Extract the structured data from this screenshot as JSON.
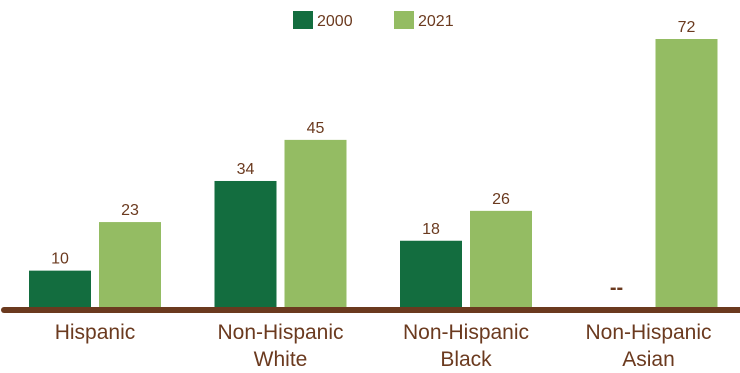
{
  "chart_data": {
    "type": "bar",
    "categories": [
      [
        "Hispanic"
      ],
      [
        "Non-Hispanic",
        "White"
      ],
      [
        "Non-Hispanic",
        "Black"
      ],
      [
        "Non-Hispanic",
        "Asian"
      ]
    ],
    "series": [
      {
        "name": "2000",
        "values": [
          10,
          34,
          18,
          null
        ],
        "labels": [
          "10",
          "34",
          "18",
          "--"
        ]
      },
      {
        "name": "2021",
        "values": [
          23,
          45,
          26,
          72
        ],
        "labels": [
          "23",
          "45",
          "26",
          "72"
        ]
      }
    ],
    "ylim": [
      0,
      72
    ],
    "grid": false,
    "legend_position": "top-center",
    "colors": {
      "series_2000": "#136d3f",
      "series_2021": "#94bc63",
      "axis_line": "#6b3a1f",
      "label_text": "#6b3a1f"
    }
  }
}
